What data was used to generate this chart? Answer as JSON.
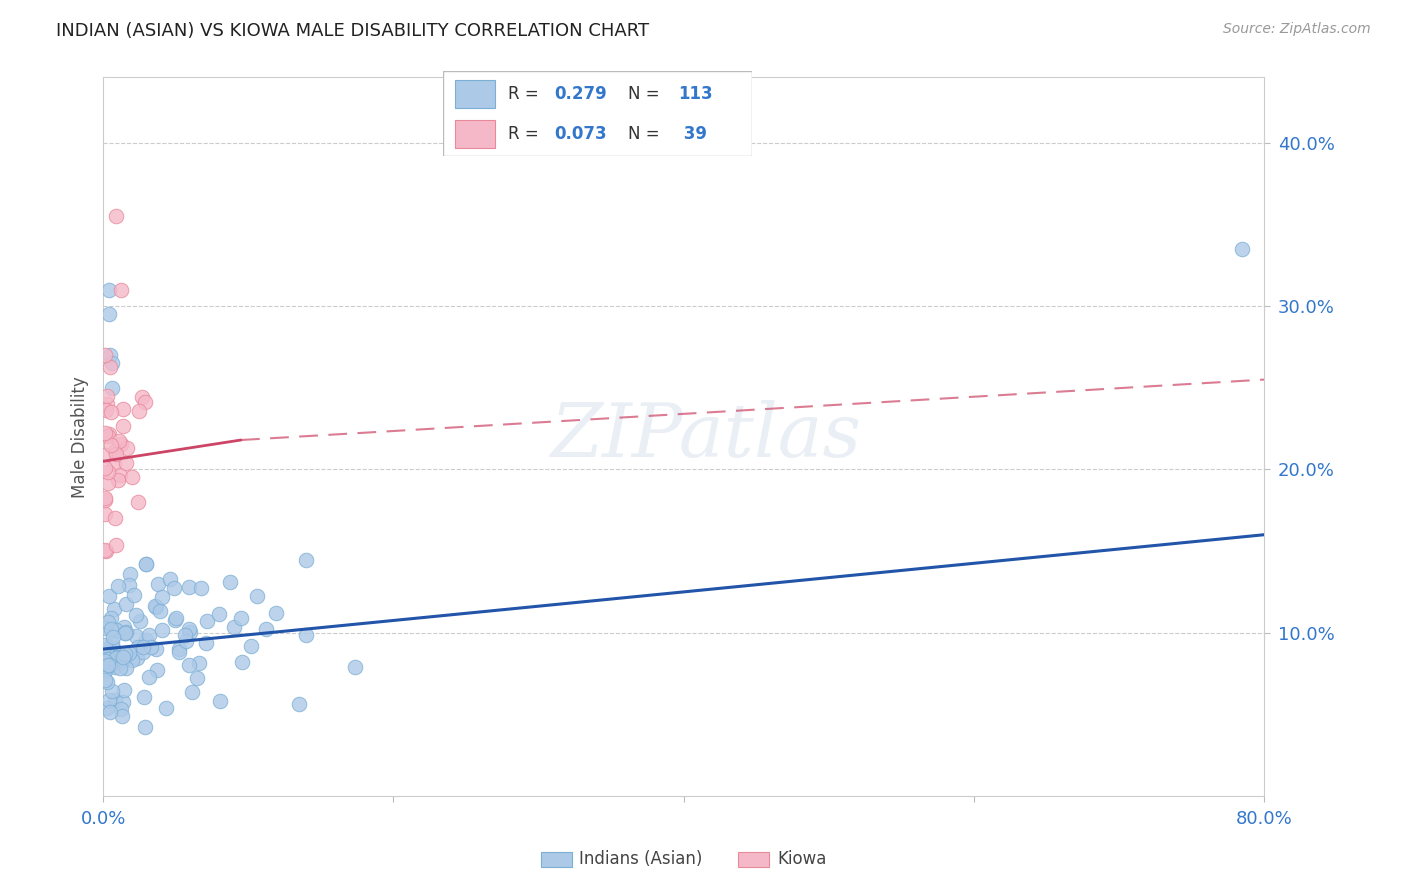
{
  "title": "INDIAN (ASIAN) VS KIOWA MALE DISABILITY CORRELATION CHART",
  "source": "Source: ZipAtlas.com",
  "ylabel_label": "Male Disability",
  "xlim": [
    0.0,
    0.8
  ],
  "ylim": [
    0.0,
    0.44
  ],
  "xticks": [
    0.0,
    0.2,
    0.4,
    0.6,
    0.8
  ],
  "xtick_labels": [
    "0.0%",
    "",
    "",
    "",
    "80.0%"
  ],
  "yticks": [
    0.1,
    0.2,
    0.3,
    0.4
  ],
  "ytick_labels": [
    "10.0%",
    "20.0%",
    "30.0%",
    "40.0%"
  ],
  "blue_R": 0.279,
  "blue_N": 113,
  "pink_R": 0.073,
  "pink_N": 39,
  "blue_scatter_color": "#adc9e8",
  "blue_scatter_edge": "#7bafd4",
  "pink_scatter_color": "#f5b8c8",
  "pink_scatter_edge": "#e8889a",
  "blue_line_color": "#2255aa",
  "pink_line_color": "#cc4466",
  "grid_color": "#cccccc",
  "background_color": "#ffffff",
  "watermark": "ZIPatlas",
  "legend_labels": [
    "Indians (Asian)",
    "Kiowa"
  ]
}
